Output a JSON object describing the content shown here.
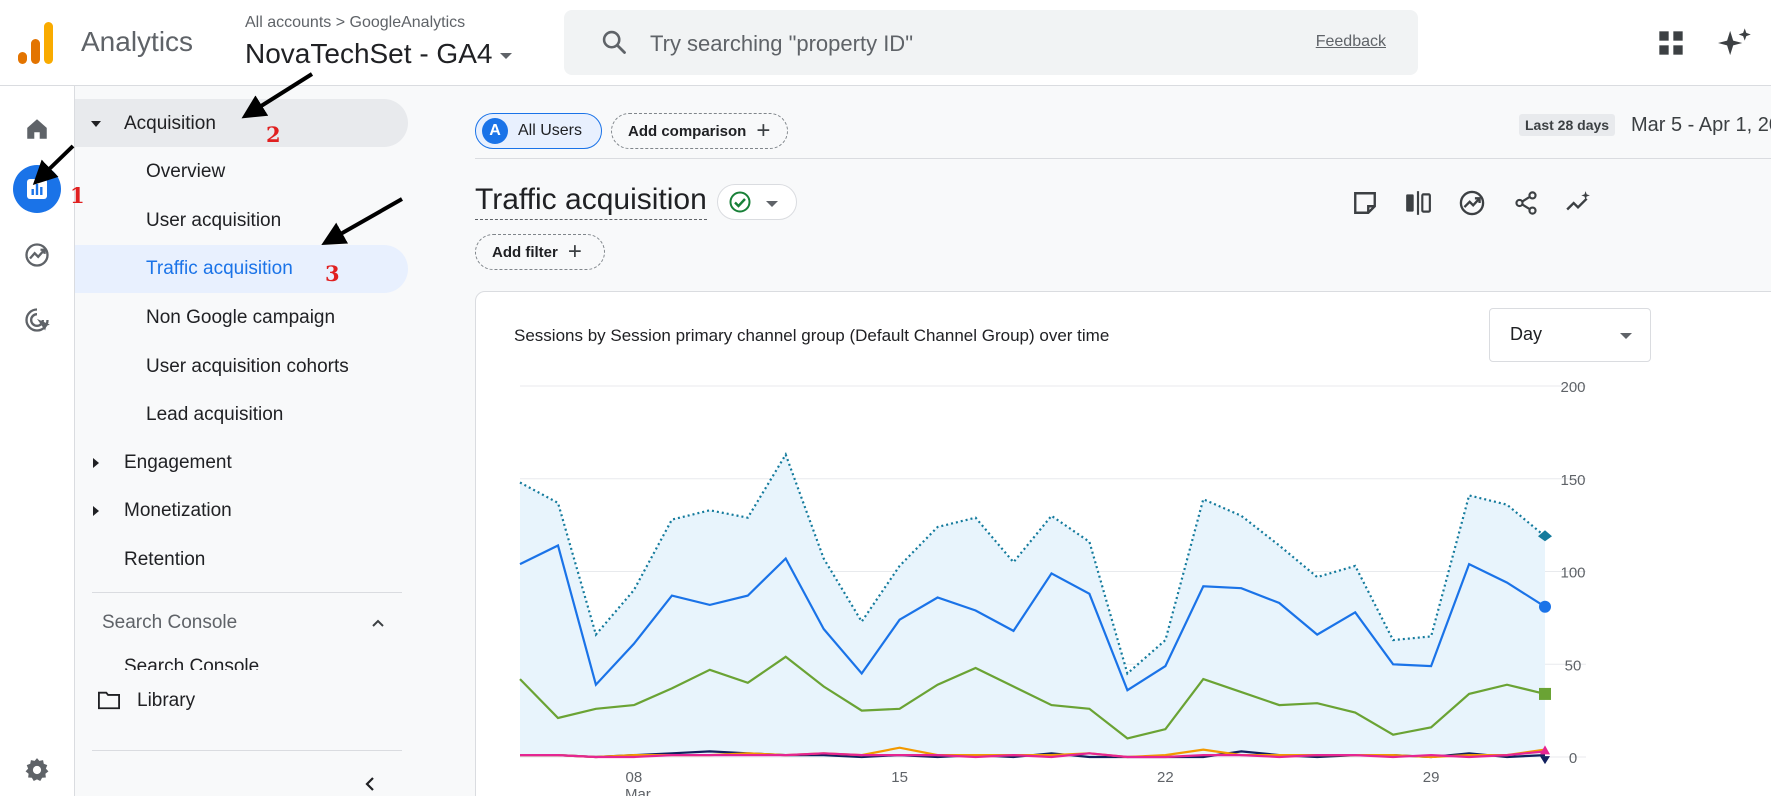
{
  "header": {
    "app_name": "Analytics",
    "breadcrumb": "All accounts > GoogleAnalytics",
    "property_name": "NovaTechSet - GA4",
    "search_placeholder": "Try searching \"property ID\"",
    "feedback_label": "Feedback",
    "logo_colors": [
      "#f9ab00",
      "#e37400",
      "#e37400"
    ]
  },
  "rail": {
    "icons": [
      "home-icon",
      "reports-icon",
      "explore-icon",
      "advertising-icon",
      "settings-icon"
    ],
    "active_color": "#1a73e8"
  },
  "nav": {
    "acquisition": "Acquisition",
    "items": [
      "Overview",
      "User acquisition",
      "Traffic acquisition",
      "Non Google campaign",
      "User acquisition cohorts",
      "Lead acquisition"
    ],
    "engagement": "Engagement",
    "monetization": "Monetization",
    "retention": "Retention",
    "search_console_section": "Search Console",
    "search_console_item": "Search Console",
    "library": "Library",
    "active_item_color": "#1a73e8"
  },
  "annotations": [
    "1",
    "2",
    "3"
  ],
  "toolbar": {
    "segment_letter": "A",
    "segment_label": "All Users",
    "add_comparison": "Add comparison",
    "date_label": "Last 28 days",
    "date_range": "Mar 5 - Apr 1, 20",
    "page_title": "Traffic acquisition",
    "add_filter": "Add filter"
  },
  "card": {
    "title": "Sessions by Session primary channel group (Default Channel Group) over time",
    "granularity": "Day"
  },
  "chart_data": {
    "type": "line",
    "title": "Sessions by Session primary channel group (Default Channel Group) over time",
    "x": [
      "Mar 5",
      "Mar 6",
      "Mar 7",
      "Mar 8",
      "Mar 9",
      "Mar 10",
      "Mar 11",
      "Mar 12",
      "Mar 13",
      "Mar 14",
      "Mar 15",
      "Mar 16",
      "Mar 17",
      "Mar 18",
      "Mar 19",
      "Mar 20",
      "Mar 21",
      "Mar 22",
      "Mar 23",
      "Mar 24",
      "Mar 25",
      "Mar 26",
      "Mar 27",
      "Mar 28",
      "Mar 29",
      "Mar 30",
      "Mar 31",
      "Apr 1"
    ],
    "x_ticks": [
      {
        "label": "08",
        "sub": "Mar",
        "index": 3
      },
      {
        "label": "15",
        "sub": "",
        "index": 10
      },
      {
        "label": "22",
        "sub": "",
        "index": 17
      },
      {
        "label": "29",
        "sub": "",
        "index": 24
      }
    ],
    "ylim": [
      0,
      200
    ],
    "y_ticks": [
      0,
      50,
      100,
      150,
      200
    ],
    "series": [
      {
        "color": "#137333",
        "style": "dotted-area",
        "values": [
          148,
          137,
          66,
          90,
          128,
          133,
          129,
          163,
          107,
          73,
          103,
          124,
          129,
          105,
          130,
          116,
          45,
          63,
          139,
          130,
          114,
          97,
          103,
          63,
          65,
          141,
          136,
          119
        ]
      },
      {
        "color": "#1a73e8",
        "style": "solid",
        "values": [
          104,
          114,
          39,
          61,
          87,
          82,
          87,
          107,
          69,
          45,
          74,
          86,
          79,
          68,
          99,
          88,
          36,
          49,
          92,
          91,
          83,
          66,
          78,
          50,
          49,
          104,
          94,
          81
        ]
      },
      {
        "color": "#6aa334",
        "style": "solid",
        "values": [
          42,
          21,
          26,
          28,
          37,
          47,
          40,
          54,
          38,
          25,
          26,
          39,
          48,
          38,
          28,
          26,
          10,
          15,
          42,
          35,
          28,
          29,
          24,
          12,
          16,
          34,
          39,
          34
        ]
      },
      {
        "color": "#12205e",
        "style": "solid",
        "values": [
          1,
          1,
          0,
          1,
          2,
          3,
          2,
          1,
          1,
          0,
          1,
          0,
          1,
          0,
          2,
          0,
          0,
          0,
          0,
          3,
          1,
          0,
          1,
          1,
          0,
          2,
          0,
          1
        ]
      },
      {
        "color": "#f29900",
        "style": "solid",
        "values": [
          1,
          1,
          0,
          1,
          1,
          1,
          2,
          1,
          2,
          1,
          5,
          1,
          1,
          1,
          1,
          2,
          0,
          1,
          4,
          1,
          1,
          1,
          1,
          1,
          0,
          1,
          1,
          4
        ]
      },
      {
        "color": "#e52592",
        "style": "solid",
        "values": [
          1,
          1,
          0,
          0,
          1,
          1,
          1,
          1,
          2,
          1,
          1,
          1,
          0,
          1,
          0,
          2,
          0,
          0,
          1,
          1,
          0,
          1,
          1,
          0,
          1,
          0,
          1,
          3
        ]
      }
    ],
    "grid": true
  }
}
